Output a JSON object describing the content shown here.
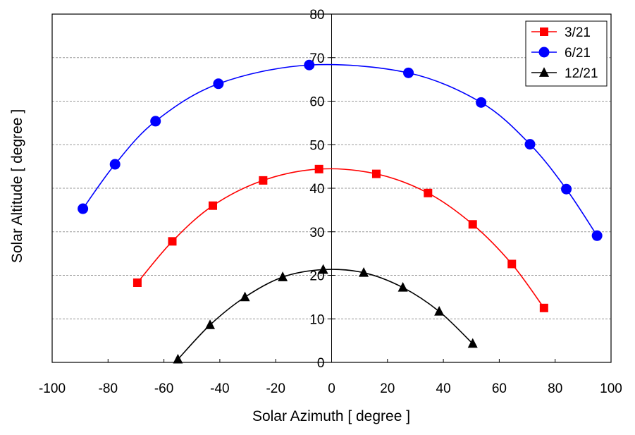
{
  "chart_data": {
    "type": "line",
    "title": "",
    "xlabel": "Solar  Azimuth [ degree ]",
    "ylabel": "Solar  Altitude [ degree ]",
    "xlim": [
      -100,
      100
    ],
    "ylim": [
      0,
      80
    ],
    "x_ticks": [
      -100,
      -80,
      -60,
      -40,
      -20,
      0,
      20,
      40,
      60,
      80,
      100
    ],
    "y_ticks": [
      0,
      10,
      20,
      30,
      40,
      50,
      60,
      70,
      80
    ],
    "grid": "horizontal dashed",
    "legend_position": "top-right",
    "series": [
      {
        "name": "3/21",
        "color": "#ff0000",
        "marker": "square",
        "points": [
          {
            "x": -69.5,
            "y": 18.3
          },
          {
            "x": -57.0,
            "y": 27.8
          },
          {
            "x": -42.5,
            "y": 36.0
          },
          {
            "x": -24.5,
            "y": 41.8
          },
          {
            "x": -4.5,
            "y": 44.4
          },
          {
            "x": 16.0,
            "y": 43.3
          },
          {
            "x": 34.5,
            "y": 38.9
          },
          {
            "x": 50.5,
            "y": 31.7
          },
          {
            "x": 64.5,
            "y": 22.6
          },
          {
            "x": 76.0,
            "y": 12.5
          }
        ]
      },
      {
        "name": "6/21",
        "color": "#0000ff",
        "marker": "circle",
        "points": [
          {
            "x": -89.0,
            "y": 35.3
          },
          {
            "x": -77.5,
            "y": 45.5
          },
          {
            "x": -63.0,
            "y": 55.4
          },
          {
            "x": -40.5,
            "y": 64.0
          },
          {
            "x": -8.0,
            "y": 68.3
          },
          {
            "x": 27.5,
            "y": 66.5
          },
          {
            "x": 53.5,
            "y": 59.7
          },
          {
            "x": 71.0,
            "y": 50.1
          },
          {
            "x": 84.0,
            "y": 39.8
          },
          {
            "x": 95.0,
            "y": 29.1
          }
        ]
      },
      {
        "name": "12/21",
        "color": "#000000",
        "marker": "triangle",
        "points": [
          {
            "x": -55.0,
            "y": 0.7
          },
          {
            "x": -43.5,
            "y": 8.6
          },
          {
            "x": -31.0,
            "y": 15.0
          },
          {
            "x": -17.5,
            "y": 19.6
          },
          {
            "x": -3.0,
            "y": 21.3
          },
          {
            "x": 11.5,
            "y": 20.6
          },
          {
            "x": 25.5,
            "y": 17.2
          },
          {
            "x": 38.5,
            "y": 11.7
          },
          {
            "x": 50.5,
            "y": 4.3
          }
        ]
      }
    ]
  }
}
